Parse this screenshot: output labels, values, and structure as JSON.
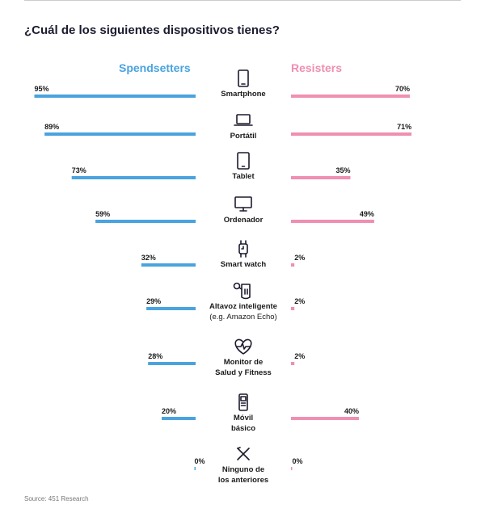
{
  "chart_data": {
    "type": "bar",
    "title": "¿Cuál de los siguientes dispositivos tienes?",
    "series": [
      {
        "name": "Spendsetters",
        "color": "#4aa3df",
        "values": [
          95,
          89,
          73,
          59,
          32,
          29,
          28,
          20,
          0
        ]
      },
      {
        "name": "Resisters",
        "color": "#ef8fb2",
        "values": [
          70,
          71,
          35,
          49,
          2,
          2,
          2,
          40,
          0
        ]
      }
    ],
    "categories": [
      {
        "lines": [
          "Smartphone"
        ],
        "icon": "smartphone-icon"
      },
      {
        "lines": [
          "Portátil"
        ],
        "icon": "laptop-icon"
      },
      {
        "lines": [
          "Tablet"
        ],
        "icon": "tablet-icon"
      },
      {
        "lines": [
          "Ordenador"
        ],
        "icon": "monitor-icon"
      },
      {
        "lines": [
          "Smart watch"
        ],
        "icon": "smartwatch-icon"
      },
      {
        "lines": [
          "Altavoz inteligente"
        ],
        "sub": "(e.g. Amazon Echo)",
        "icon": "smart-speaker-icon"
      },
      {
        "lines": [
          "Monitor de",
          "Salud y Fitness"
        ],
        "icon": "heart-pulse-icon"
      },
      {
        "lines": [
          "Móvil",
          "básico"
        ],
        "icon": "basic-phone-icon"
      },
      {
        "lines": [
          "Ninguno de",
          "los anteriores"
        ],
        "icon": "cross-icon"
      }
    ],
    "unit": "%",
    "legend_position": "top"
  },
  "source": "Source: 451 Research"
}
